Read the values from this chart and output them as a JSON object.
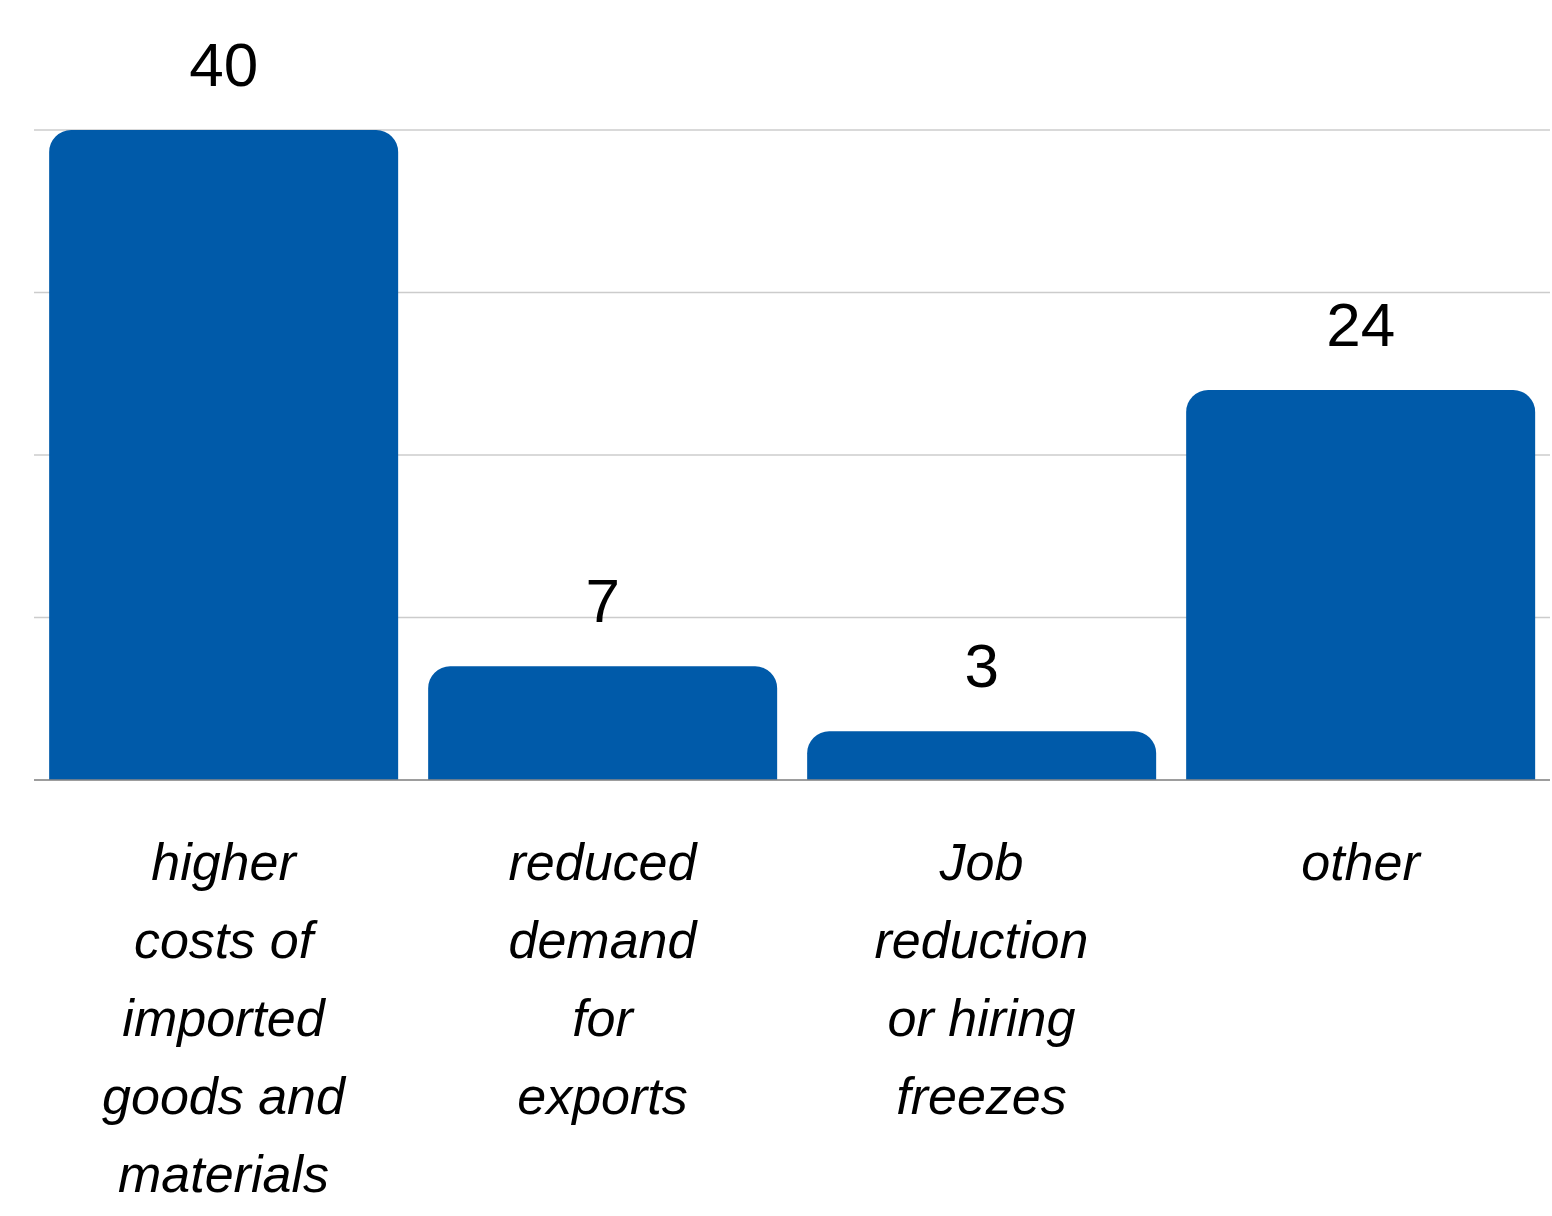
{
  "chart_data": {
    "type": "bar",
    "categories": [
      "higher costs of imported goods and materials",
      "reduced demand for exports",
      "Job reduction or hiring freezes",
      "other"
    ],
    "values": [
      40,
      7,
      3,
      24
    ],
    "color": "#005aa9",
    "ylim": [
      0,
      40
    ],
    "tick_labels": "x",
    "grid": "y",
    "data_labels": true
  }
}
